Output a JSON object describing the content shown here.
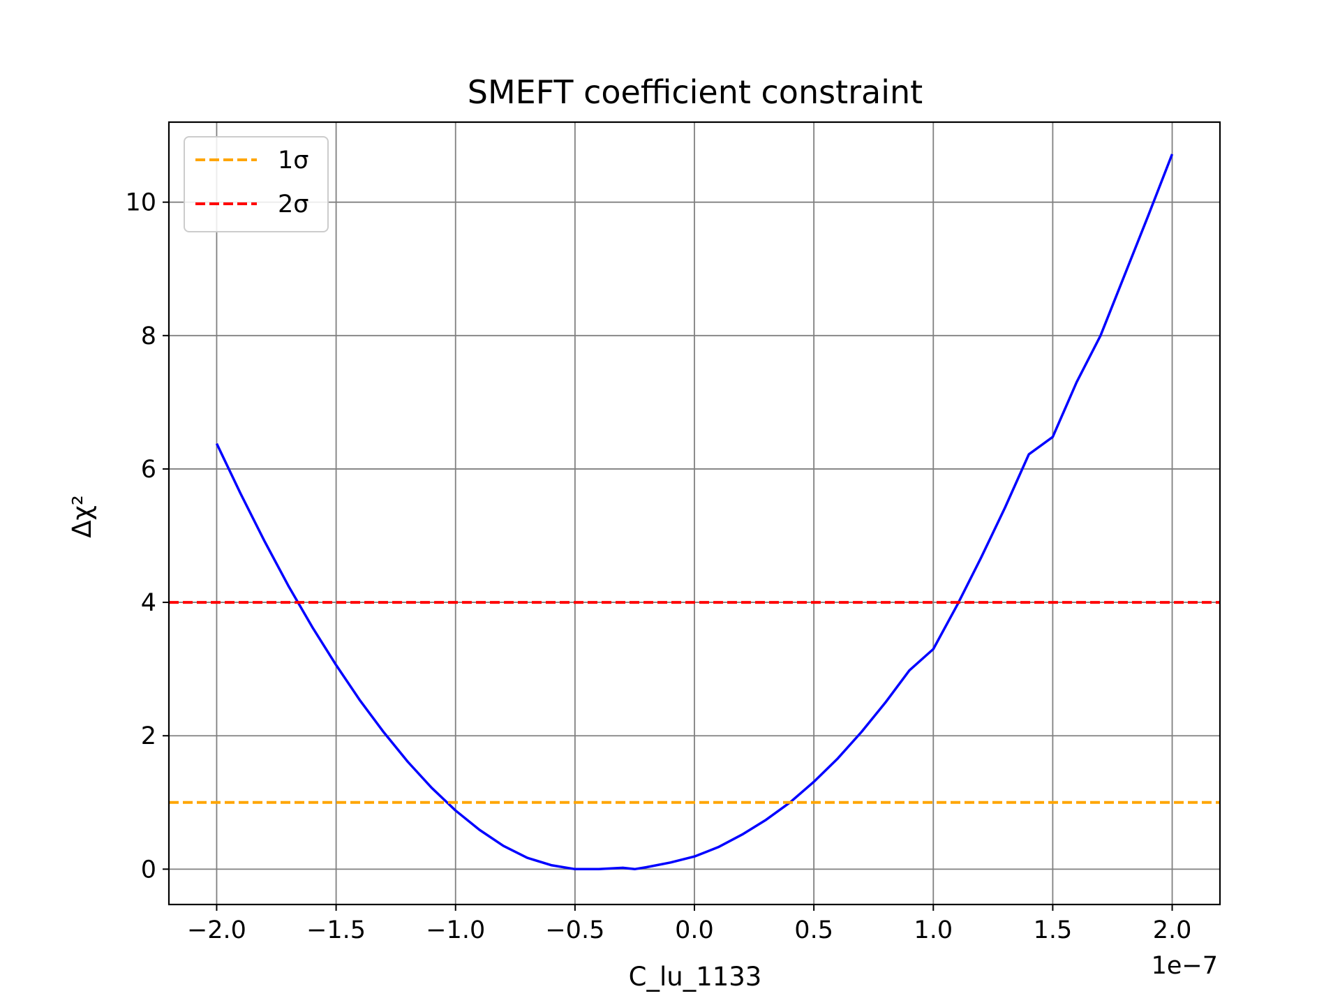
{
  "chart_data": {
    "type": "line",
    "title": "SMEFT coefficient constraint",
    "xlabel": "C_lu_1133",
    "ylabel": "Δχ²",
    "x_offset_label": "1e−7",
    "xlim": [
      -2.2,
      2.2
    ],
    "ylim": [
      -0.53,
      11.2
    ],
    "xticks": [
      -2.0,
      -1.5,
      -1.0,
      -0.5,
      0.0,
      0.5,
      1.0,
      1.5,
      2.0
    ],
    "xtick_labels": [
      "−2.0",
      "−1.5",
      "−1.0",
      "−0.5",
      "0.0",
      "0.5",
      "1.0",
      "1.5",
      "2.0"
    ],
    "yticks": [
      0,
      2,
      4,
      6,
      8,
      10
    ],
    "ytick_labels": [
      "0",
      "2",
      "4",
      "6",
      "8",
      "10"
    ],
    "grid": true,
    "legend_position": "top-left",
    "series": [
      {
        "type": "curve",
        "color": "#0000ff",
        "x": [
          -2.0,
          -1.9,
          -1.8,
          -1.7,
          -1.6,
          -1.5,
          -1.4,
          -1.3,
          -1.2,
          -1.1,
          -1.0,
          -0.9,
          -0.8,
          -0.7,
          -0.6,
          -0.5,
          -0.4,
          -0.3,
          -0.25,
          -0.2,
          -0.1,
          0.0,
          0.1,
          0.2,
          0.3,
          0.4,
          0.5,
          0.6,
          0.7,
          0.8,
          0.9,
          1.0,
          1.1,
          1.2,
          1.3,
          1.4,
          1.5,
          1.6,
          1.7,
          1.8,
          1.9,
          2.0
        ],
        "y": [
          6.38,
          5.63,
          4.92,
          4.25,
          3.63,
          3.06,
          2.53,
          2.05,
          1.61,
          1.22,
          0.88,
          0.59,
          0.35,
          0.17,
          0.06,
          0.0,
          0.0,
          0.02,
          0.0,
          0.03,
          0.1,
          0.19,
          0.33,
          0.52,
          0.74,
          1.0,
          1.31,
          1.66,
          2.06,
          2.5,
          2.98,
          3.3,
          3.96,
          4.67,
          5.42,
          6.22,
          6.48,
          7.3,
          8.0,
          8.9,
          9.8,
          10.72
        ]
      },
      {
        "name": "1σ",
        "type": "hline",
        "y": 1,
        "color": "#ffa500",
        "dash": true
      },
      {
        "name": "2σ",
        "type": "hline",
        "y": 4,
        "color": "#ff0000",
        "dash": true
      }
    ]
  }
}
